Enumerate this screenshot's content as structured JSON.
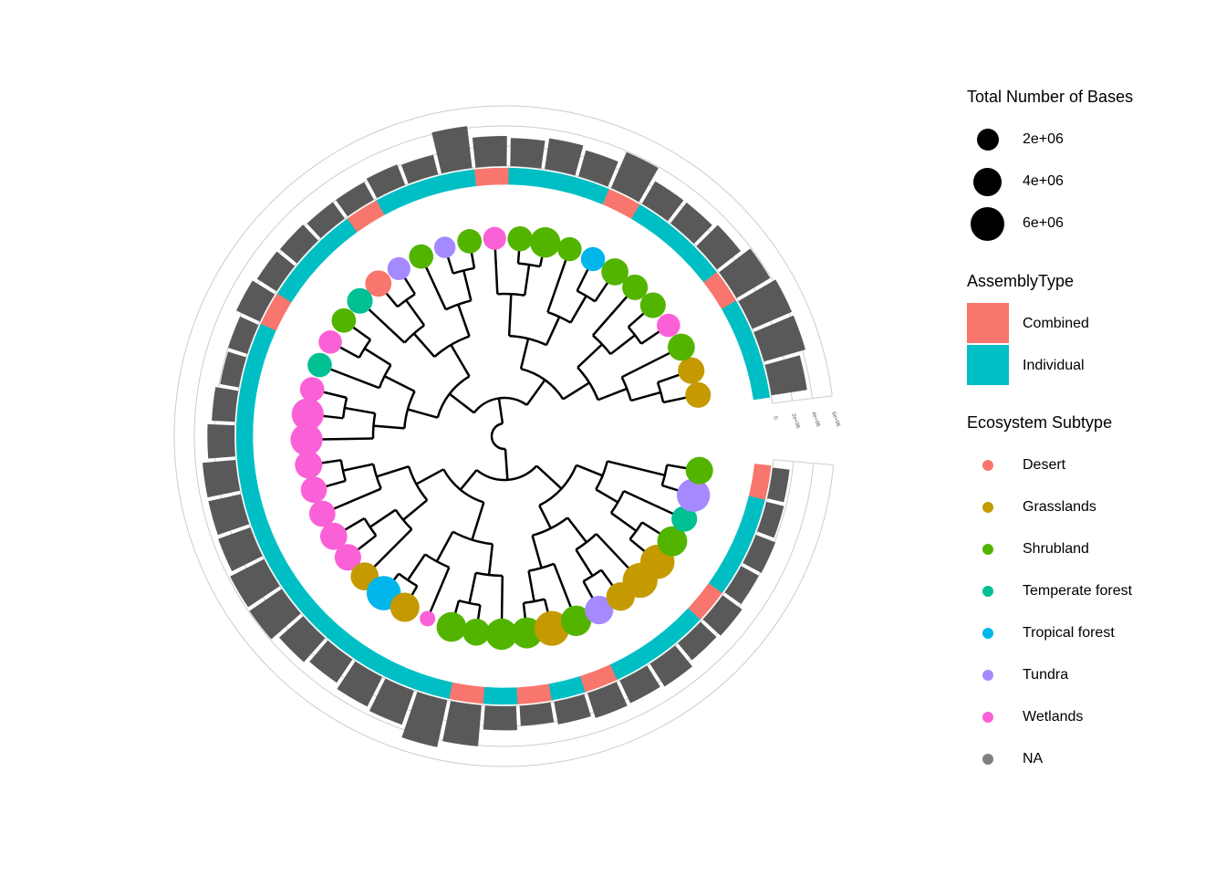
{
  "legend": {
    "size_title": "Total Number of Bases",
    "size_items": [
      {
        "label": "2e+06",
        "value": 2000000
      },
      {
        "label": "4e+06",
        "value": 4000000
      },
      {
        "label": "6e+06",
        "value": 6000000
      }
    ],
    "assembly_title": "AssemblyType",
    "assembly_items": [
      {
        "label": "Combined",
        "color": "#F8766D"
      },
      {
        "label": "Individual",
        "color": "#00BFC4"
      }
    ],
    "ecosystem_title": "Ecosystem Subtype",
    "ecosystem_items": [
      {
        "label": "Desert",
        "color": "#F8766D"
      },
      {
        "label": "Grasslands",
        "color": "#C49A00"
      },
      {
        "label": "Shrubland",
        "color": "#53B400"
      },
      {
        "label": "Temperate forest",
        "color": "#00C094"
      },
      {
        "label": "Tropical forest",
        "color": "#00B6EB"
      },
      {
        "label": "Tundra",
        "color": "#A58AFF"
      },
      {
        "label": "Wetlands",
        "color": "#FB61D7"
      },
      {
        "label": "NA",
        "color": "#7F7F7F"
      }
    ]
  },
  "axis": {
    "tick_labels": [
      "0",
      "2e+06",
      "4e+06",
      "6e+06"
    ]
  },
  "tree": {
    "tips": [
      {
        "eco": "Grasslands",
        "bases": 3000000,
        "assembly": "Individual"
      },
      {
        "eco": "Grasslands",
        "bases": 3300000,
        "assembly": "Individual"
      },
      {
        "eco": "Shrubland",
        "bases": 3500000,
        "assembly": "Individual"
      },
      {
        "eco": "Wetlands",
        "bases": 2300000,
        "assembly": "Combined"
      },
      {
        "eco": "Shrubland",
        "bases": 3000000,
        "assembly": "Individual"
      },
      {
        "eco": "Shrubland",
        "bases": 3000000,
        "assembly": "Individual"
      },
      {
        "eco": "Shrubland",
        "bases": 3500000,
        "assembly": "Individual"
      },
      {
        "eco": "Tropical forest",
        "bases": 2500000,
        "assembly": "Combined"
      },
      {
        "eco": "Shrubland",
        "bases": 2500000,
        "assembly": "Individual"
      },
      {
        "eco": "Shrubland",
        "bases": 4800000,
        "assembly": "Individual"
      },
      {
        "eco": "Shrubland",
        "bases": 2800000,
        "assembly": "Individual"
      },
      {
        "eco": "Wetlands",
        "bases": 2200000,
        "assembly": "Combined"
      },
      {
        "eco": "Shrubland",
        "bases": 2600000,
        "assembly": "Individual"
      },
      {
        "eco": "Tundra",
        "bases": 1800000,
        "assembly": "Individual"
      },
      {
        "eco": "Shrubland",
        "bases": 2600000,
        "assembly": "Individual"
      },
      {
        "eco": "Tundra",
        "bases": 2200000,
        "assembly": "Combined"
      },
      {
        "eco": "Desert",
        "bases": 3200000,
        "assembly": "Individual"
      },
      {
        "eco": "Temperate forest",
        "bases": 3000000,
        "assembly": "Individual"
      },
      {
        "eco": "Shrubland",
        "bases": 2600000,
        "assembly": "Individual"
      },
      {
        "eco": "Wetlands",
        "bases": 2300000,
        "assembly": "Combined"
      },
      {
        "eco": "Temperate forest",
        "bases": 2600000,
        "assembly": "Individual"
      },
      {
        "eco": "Wetlands",
        "bases": 2600000,
        "assembly": "Individual"
      },
      {
        "eco": "Wetlands",
        "bases": 5500000,
        "assembly": "Individual"
      },
      {
        "eco": "Wetlands",
        "bases": 5500000,
        "assembly": "Individual"
      },
      {
        "eco": "Wetlands",
        "bases": 3600000,
        "assembly": "Individual"
      },
      {
        "eco": "Wetlands",
        "bases": 3200000,
        "assembly": "Individual"
      },
      {
        "eco": "Wetlands",
        "bases": 3200000,
        "assembly": "Individual"
      },
      {
        "eco": "Wetlands",
        "bases": 3500000,
        "assembly": "Individual"
      },
      {
        "eco": "Wetlands",
        "bases": 3300000,
        "assembly": "Individual"
      },
      {
        "eco": "Grasslands",
        "bases": 3800000,
        "assembly": "Individual"
      },
      {
        "eco": "Tropical forest",
        "bases": 6500000,
        "assembly": "Individual"
      },
      {
        "eco": "Grasslands",
        "bases": 4300000,
        "assembly": "Individual"
      },
      {
        "eco": "Wetlands",
        "bases": 600000,
        "assembly": "Individual"
      },
      {
        "eco": "Shrubland",
        "bases": 4500000,
        "assembly": "Individual"
      },
      {
        "eco": "Shrubland",
        "bases": 3500000,
        "assembly": "Combined"
      },
      {
        "eco": "Shrubland",
        "bases": 5200000,
        "assembly": "Individual"
      },
      {
        "eco": "Shrubland",
        "bases": 5000000,
        "assembly": "Combined"
      },
      {
        "eco": "Grasslands",
        "bases": 6800000,
        "assembly": "Individual"
      },
      {
        "eco": "Shrubland",
        "bases": 4800000,
        "assembly": "Combined"
      },
      {
        "eco": "Tundra",
        "bases": 4000000,
        "assembly": "Individual"
      },
      {
        "eco": "Grasslands",
        "bases": 4000000,
        "assembly": "Individual"
      },
      {
        "eco": "Grasslands",
        "bases": 6800000,
        "assembly": "Individual"
      },
      {
        "eco": "Grasslands",
        "bases": 6500000,
        "assembly": "Combined"
      },
      {
        "eco": "Shrubland",
        "bases": 4600000,
        "assembly": "Individual"
      },
      {
        "eco": "Temperate forest",
        "bases": 3000000,
        "assembly": "Individual"
      },
      {
        "eco": "Tundra",
        "bases": 6000000,
        "assembly": "Individual"
      },
      {
        "eco": "Shrubland",
        "bases": 3600000,
        "assembly": "Combined"
      }
    ],
    "bar_values": [
      3600000,
      4300000,
      4300000,
      3900000,
      3000000,
      2600000,
      2600000,
      3900000,
      2700000,
      3100000,
      2800000,
      3000000,
      4200000,
      2000000,
      2200000,
      2000000,
      2000000,
      2200000,
      2300000,
      2600000,
      2000000,
      1900000,
      2300000,
      2700000,
      3300000,
      3300000,
      3400000,
      3800000,
      3900000,
      3200000,
      2800000,
      3300000,
      3600000,
      4800000,
      4100000,
      2400000,
      2000000,
      2300000,
      2600000,
      2500000,
      2700000,
      2200000,
      2400000,
      2000000,
      2100000,
      1800000,
      1700000
    ],
    "edges": []
  }
}
